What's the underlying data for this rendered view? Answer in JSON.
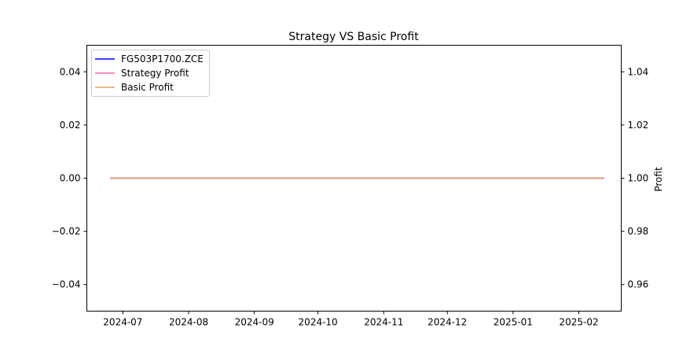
{
  "chart_data": {
    "type": "line",
    "title": "Strategy VS Basic Profit",
    "xlabel": "",
    "ylabel_left": "",
    "ylabel_right": "Profit",
    "x_tick_labels": [
      "2024-07",
      "2024-08",
      "2024-09",
      "2024-10",
      "2024-11",
      "2024-12",
      "2025-01",
      "2025-02"
    ],
    "x_range": [
      "2024-06-14",
      "2025-02-21"
    ],
    "y_left_ticks": [
      "0.04",
      "0.02",
      "0.00",
      "−0.02",
      "−0.04"
    ],
    "y_left_range": [
      -0.05,
      0.05
    ],
    "y_right_ticks": [
      "1.04",
      "1.02",
      "1.00",
      "0.98",
      "0.96"
    ],
    "y_right_range": [
      0.95,
      1.05
    ],
    "grid": false,
    "legend_position": "top-left",
    "series": [
      {
        "name": "FG503P1700.ZCE",
        "axis": "left",
        "color": "#0000ff",
        "x": [
          "2024-06-25",
          "2025-02-13"
        ],
        "values": [
          0.0,
          0.0
        ]
      },
      {
        "name": "Strategy Profit",
        "axis": "right",
        "color": "#ff69b4",
        "x": [
          "2024-06-25",
          "2025-02-13"
        ],
        "values": [
          1.0,
          1.0
        ]
      },
      {
        "name": "Basic Profit",
        "axis": "right",
        "color": "#e8a060",
        "x": [
          "2024-06-25",
          "2025-02-13"
        ],
        "values": [
          1.0,
          1.0
        ]
      }
    ]
  }
}
